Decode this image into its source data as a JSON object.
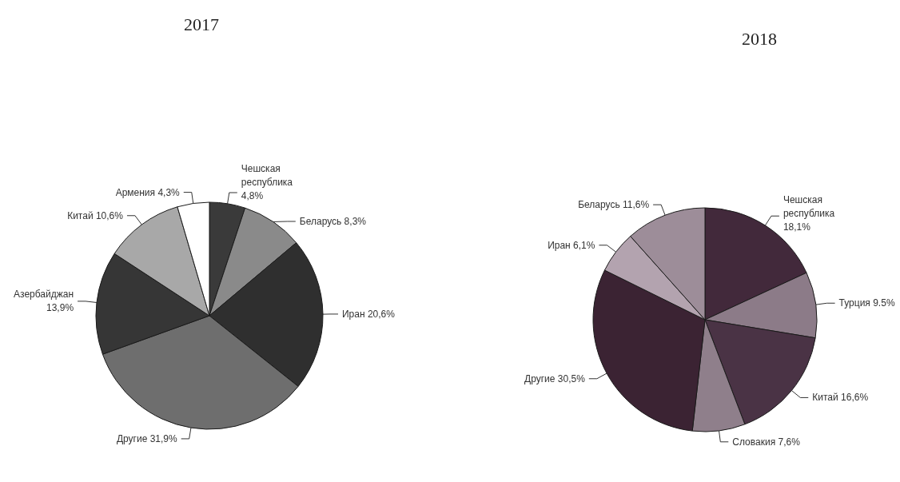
{
  "chart_data": [
    {
      "type": "pie",
      "title": "2017",
      "categories": [
        "Чешская республика",
        "Беларусь",
        "Иран",
        "Другие",
        "Азербайджан",
        "Китай",
        "Армения"
      ],
      "values": [
        4.8,
        8.3,
        20.6,
        31.9,
        13.9,
        10.6,
        4.3
      ],
      "value_labels": [
        "4,8%",
        "8,3%",
        "20,6%",
        "31,9%",
        "13,9%",
        "10,6%",
        "4,3%"
      ],
      "colors": [
        "#3a3a3a",
        "#8a8a8a",
        "#2f2f2f",
        "#6e6e6e",
        "#363636",
        "#a8a8a8",
        "#ffffff"
      ]
    },
    {
      "type": "pie",
      "title": "2018",
      "categories": [
        "Чешская республика",
        "Турция",
        "Китай",
        "Словакия",
        "Другие",
        "Иран",
        "Беларусь"
      ],
      "values": [
        18.1,
        9.5,
        16.6,
        7.6,
        30.5,
        6.1,
        11.6
      ],
      "value_labels": [
        "18,1%",
        "9.5%",
        "16,6%",
        "7,6%",
        "30,5%",
        "6,1%",
        "11,6%"
      ],
      "colors": [
        "#42293b",
        "#8c7b88",
        "#4a3345",
        "#8f7f8b",
        "#3b2333",
        "#b3a3af",
        "#9d8d99"
      ]
    }
  ]
}
